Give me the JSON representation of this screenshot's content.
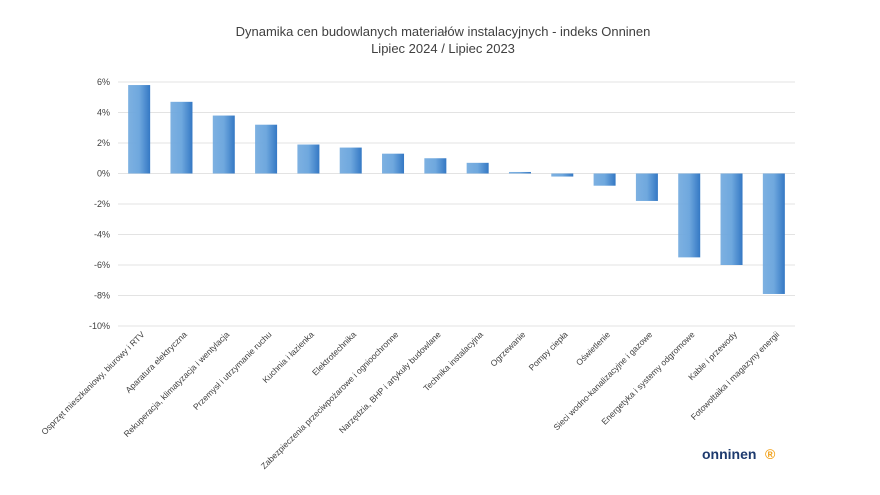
{
  "chart_data": {
    "type": "bar",
    "title": "Dynamika cen budowlanych materiałów instalacyjnych - indeks Onninen",
    "subtitle": "Lipiec 2024 / Lipiec 2023",
    "categories": [
      "Osprzęt mieszkaniowy, biurowy i RTV",
      "Aparatura elektryczna",
      "Rekuperacja, klimatyzacja i wentylacja",
      "Przemysł i utrzymanie ruchu",
      "Kuchnia i łazienka",
      "Elektrotechnika",
      "Zabezpieczenia przeciwpożarowe i ognioochronne",
      "Narzędzia, BHP i artykuły budowlane",
      "Technika instalacyjna",
      "Ogrzewanie",
      "Pompy ciepła",
      "Oświetlenie",
      "Sieci wodno-kanalizacyjne i gazowe",
      "Energetyka i systemy odgromowe",
      "Kable i przewody",
      "Fotowoltaika i magazyny energii"
    ],
    "values": [
      5.8,
      4.7,
      3.8,
      3.2,
      1.9,
      1.7,
      1.3,
      1.0,
      0.7,
      0.1,
      -0.2,
      -0.8,
      -1.8,
      -5.5,
      -6.0,
      -7.9
    ],
    "ylim": [
      -10,
      6
    ],
    "yticks": [
      "-10%",
      "-8%",
      "-6%",
      "-4%",
      "-2%",
      "0%",
      "2%",
      "4%",
      "6%"
    ],
    "grid": true,
    "legend": "none",
    "bar_color_light": "#6fa8de",
    "bar_color_dark": "#3478c4"
  },
  "logo": {
    "text": "onninen",
    "accent": "®",
    "color": "#1d3a6e",
    "accent_color": "#f2a21b"
  }
}
